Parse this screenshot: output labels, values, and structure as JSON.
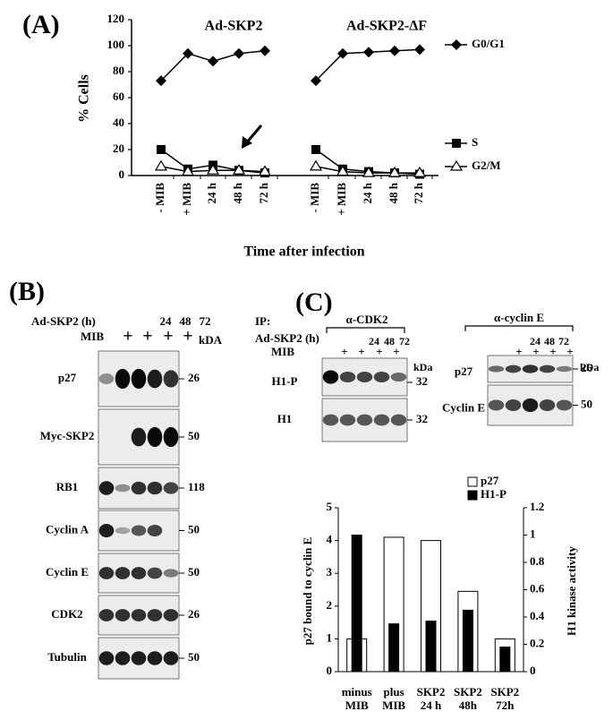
{
  "chart_data": [
    {
      "type": "line",
      "panel": "(A)",
      "ylabel": "% Cells",
      "xlabel": "Time after infection",
      "ylim": [
        0,
        120
      ],
      "yticks": [
        0,
        20,
        40,
        60,
        80,
        100,
        120
      ],
      "groups": [
        {
          "title": "Ad-SKP2",
          "categories": [
            "- MIB",
            "+ MIB",
            "24 h",
            "48 h",
            "72 h"
          ]
        },
        {
          "title": "Ad-SKP2-ΔF",
          "categories": [
            "- MIB",
            "+ MIB",
            "24 h",
            "48 h",
            "72 h"
          ]
        }
      ],
      "series": [
        {
          "name": "G0/G1",
          "marker": "diamond",
          "color": "#000000",
          "values": [
            [
              73,
              94,
              88,
              94,
              96
            ],
            [
              73,
              94,
              95,
              96,
              97
            ]
          ]
        },
        {
          "name": "S",
          "marker": "square",
          "color": "#000000",
          "values": [
            [
              20,
              5,
              8,
              4,
              2
            ],
            [
              20,
              5,
              3,
              2,
              1
            ]
          ]
        },
        {
          "name": "G2/M",
          "marker": "triangle",
          "color": "#000000",
          "values": [
            [
              7,
              3,
              4,
              4,
              3
            ],
            [
              7,
              3,
              2,
              2,
              2
            ]
          ]
        }
      ]
    },
    {
      "type": "bar",
      "ylabel": "p27 bound to cyclin E",
      "y2label": "H1 kinase activity",
      "ylim": [
        0,
        5
      ],
      "yticks": [
        0,
        1,
        2,
        3,
        4,
        5
      ],
      "y2lim": [
        0,
        1.2
      ],
      "y2ticks": [
        0,
        0.2,
        0.4,
        0.6,
        0.8,
        1,
        1.2
      ],
      "categories": [
        [
          "minus",
          "MIB"
        ],
        [
          "plus",
          "MIB"
        ],
        [
          "SKP2",
          "24 h"
        ],
        [
          "SKP2",
          "48h"
        ],
        [
          "SKP2",
          "72h"
        ]
      ],
      "series": [
        {
          "name": "p27",
          "color": "#ffffff",
          "values": [
            1,
            4.1,
            4.0,
            2.45,
            1.0
          ]
        },
        {
          "name": "H1-P",
          "color": "#000000",
          "axis": "y2",
          "values": [
            1.0,
            0.35,
            0.37,
            0.45,
            0.18
          ]
        }
      ]
    }
  ],
  "panel_b": {
    "label": "(B)",
    "ad_label": "Ad-SKP2 (h)",
    "times": [
      "24",
      "48",
      "72"
    ],
    "mib_label": "MIB",
    "mib": [
      "+",
      "+",
      "+",
      "+"
    ],
    "kda_label": "kDA",
    "rows": [
      {
        "name": "p27",
        "kda": "26"
      },
      {
        "name": "Myc-SKP2",
        "kda": "50"
      },
      {
        "name": "RB1",
        "kda": "118"
      },
      {
        "name": "Cyclin A",
        "kda": "50"
      },
      {
        "name": "Cyclin E",
        "kda": "50"
      },
      {
        "name": "CDK2",
        "kda": "26"
      },
      {
        "name": "Tubulin",
        "kda": "50"
      }
    ]
  },
  "panel_c": {
    "label": "(C)",
    "ip_label": "IP:",
    "ips": [
      "α-CDK2",
      "α-cyclin E"
    ],
    "ad_label": "Ad-SKP2 (h)",
    "times": [
      "24",
      "48",
      "72"
    ],
    "mib_label": "MIB",
    "mib": [
      "+",
      "+",
      "+",
      "+"
    ],
    "kda_label": "kDa",
    "left_rows": [
      {
        "name": "H1-P",
        "kda": "32"
      },
      {
        "name": "H1",
        "kda": "32"
      }
    ],
    "right_rows": [
      {
        "name": "p27",
        "kda": "26"
      },
      {
        "name": "Cyclin E",
        "kda": "50"
      }
    ]
  }
}
